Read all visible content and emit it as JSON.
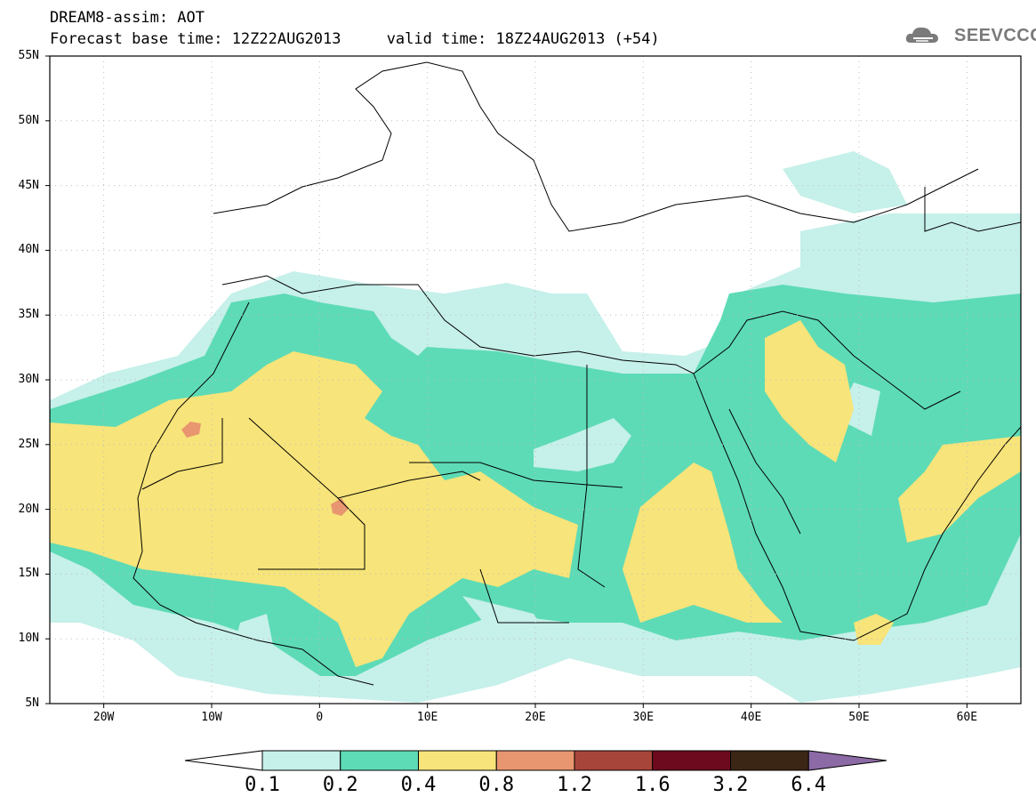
{
  "title": {
    "line1": "DREAM8-assim: AOT",
    "line2": "Forecast base time: 12Z22AUG2013     valid time: 18Z24AUG2013 (+54)"
  },
  "logo": {
    "text": "SEEVCCC",
    "icon": "cloud-icon",
    "color": "#7a7a7a"
  },
  "map": {
    "type": "filled-contour-map",
    "variable": "AOT",
    "lon_range": [
      -25,
      65
    ],
    "lat_range": [
      5,
      55
    ],
    "grid": true,
    "lat_labels": [
      "55N",
      "50N",
      "45N",
      "40N",
      "35N",
      "30N",
      "25N",
      "20N",
      "15N",
      "10N",
      "5N"
    ],
    "lon_labels": [
      "20W",
      "10W",
      "0",
      "10E",
      "20E",
      "30E",
      "40E",
      "50E",
      "60E"
    ]
  },
  "colorbar": {
    "labels": [
      "0.1",
      "0.2",
      "0.4",
      "0.8",
      "1.2",
      "1.6",
      "3.2",
      "6.4"
    ],
    "colors": [
      "#ffffff",
      "#c6f0ea",
      "#5ddbb6",
      "#f7e47a",
      "#e89670",
      "#a8453a",
      "#6e0a1e",
      "#3b2616",
      "#8c6aa5"
    ]
  }
}
